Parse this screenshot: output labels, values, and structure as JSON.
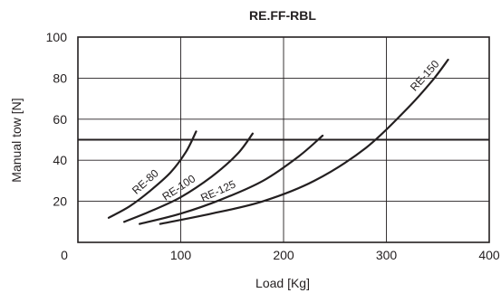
{
  "chart_data": {
    "type": "line",
    "title": "RE.FF-RBL",
    "xlabel": "Load [Kg]",
    "ylabel": "Manual tow [N]",
    "xlim": [
      0,
      400
    ],
    "ylim": [
      0,
      100
    ],
    "x_ticks": [
      0,
      100,
      200,
      300,
      400
    ],
    "y_ticks": [
      20,
      40,
      60,
      80,
      100
    ],
    "grid": true,
    "reference_line": {
      "y": 50
    },
    "series": [
      {
        "name": "RE-80",
        "x": [
          30,
          50,
          70,
          90,
          105,
          115
        ],
        "y": [
          12,
          17.5,
          25,
          34,
          44,
          54
        ]
      },
      {
        "name": "RE-100",
        "x": [
          45,
          70,
          100,
          130,
          155,
          170
        ],
        "y": [
          10,
          15,
          22,
          32,
          43,
          53
        ]
      },
      {
        "name": "RE-125",
        "x": [
          60,
          100,
          140,
          180,
          215,
          238
        ],
        "y": [
          9,
          14,
          21,
          30,
          42,
          52
        ]
      },
      {
        "name": "RE-150",
        "x": [
          80,
          130,
          180,
          230,
          280,
          320,
          345,
          360
        ],
        "y": [
          9,
          14,
          20,
          30,
          46,
          65,
          79,
          89
        ]
      }
    ]
  }
}
